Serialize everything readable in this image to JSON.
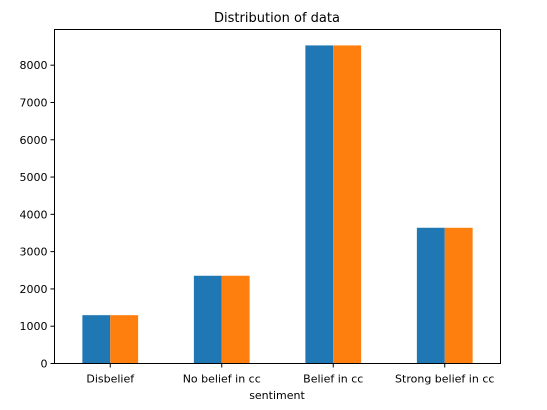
{
  "chart_data": {
    "type": "bar",
    "title": "Distribution of data",
    "xlabel": "sentiment",
    "ylabel": "",
    "categories": [
      "Disbelief",
      "No belief in cc",
      "Belief in cc",
      "Strong belief in cc"
    ],
    "series": [
      {
        "values": [
          1296,
          2353,
          8530,
          3640
        ],
        "color": "#1f77b4"
      },
      {
        "values": [
          1296,
          2353,
          8530,
          3640
        ],
        "color": "#ff7f0e"
      }
    ],
    "ylim": [
      0,
      8957
    ],
    "yticks": [
      0,
      1000,
      2000,
      3000,
      4000,
      5000,
      6000,
      7000,
      8000
    ],
    "grid": false,
    "legend": "none"
  }
}
